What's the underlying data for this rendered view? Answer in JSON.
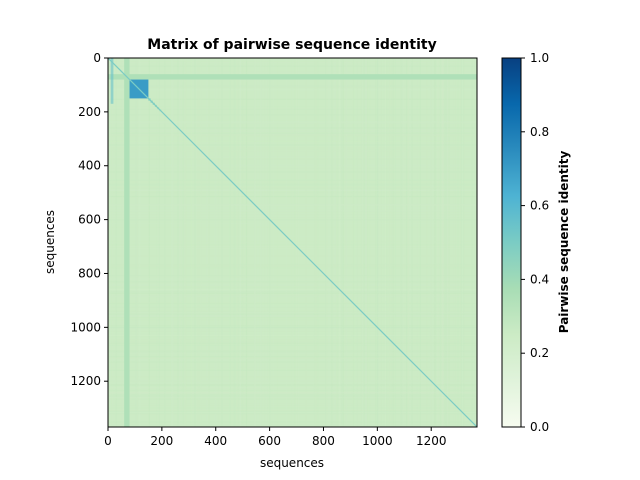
{
  "chart_data": {
    "type": "heatmap",
    "title": "Matrix of pairwise sequence identity",
    "xlabel": "sequences",
    "ylabel": "sequences",
    "n_sequences": 1370,
    "x_ticks": [
      0,
      200,
      400,
      600,
      800,
      1000,
      1200
    ],
    "y_ticks": [
      0,
      200,
      400,
      600,
      800,
      1000,
      1200
    ],
    "x_tick_labels": [
      "0",
      "200",
      "400",
      "600",
      "800",
      "1000",
      "1200"
    ],
    "y_tick_labels": [
      "0",
      "200",
      "400",
      "600",
      "800",
      "1000",
      "1200"
    ],
    "colorbar": {
      "label": "Pairwise sequence identity",
      "colormap": "GnBu",
      "range": [
        0.0,
        1.0
      ],
      "ticks": [
        0.0,
        0.2,
        0.4,
        0.6,
        0.8,
        1.0
      ],
      "tick_labels": [
        "0.0",
        "0.2",
        "0.4",
        "0.6",
        "0.8",
        "1.0"
      ]
    },
    "matrix_summary": {
      "background_identity": 0.25,
      "diagonal_identity": 1.0,
      "high_identity_block": {
        "rows": [
          80,
          150
        ],
        "cols": [
          80,
          150
        ],
        "identity": 0.7
      },
      "bright_band_rows": [
        60,
        80
      ],
      "bright_band_identity": 0.35,
      "bright_band_cols": [
        60,
        80
      ],
      "low_identity_strip_cols": [
        10,
        20
      ],
      "low_identity_strip_rows": [
        0,
        170
      ],
      "low_identity_strip_identity": 0.55
    }
  }
}
